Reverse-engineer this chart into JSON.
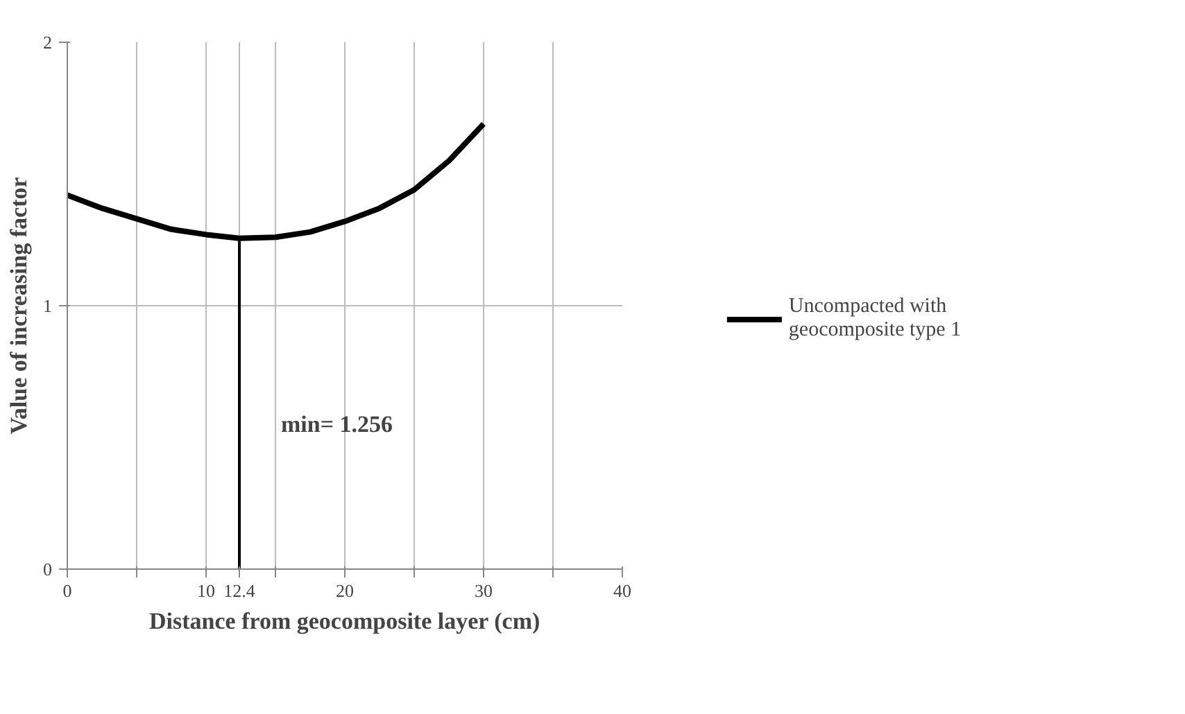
{
  "chart_data": {
    "type": "line",
    "xlabel": "Distance from geocomposite layer (cm)",
    "ylabel": "Value of increasing factor",
    "xlim": [
      0,
      40
    ],
    "ylim": [
      0,
      2
    ],
    "xticks": [
      0,
      {
        "value": 5,
        "label": null
      },
      10,
      {
        "value": 12.4,
        "label": "12.4"
      },
      {
        "value": 15,
        "label": null
      },
      20,
      {
        "value": 25,
        "label": null
      },
      30,
      {
        "value": 35,
        "label": null
      },
      40
    ],
    "yticks": [
      0,
      1,
      2
    ],
    "grid": true,
    "legend": "right",
    "marker": "none",
    "line_style": "solid",
    "series": [
      {
        "name": "Uncompacted with geocomposite type 1",
        "color": "#000000",
        "x": [
          0,
          2.5,
          5,
          7.5,
          10,
          12.4,
          15,
          17.5,
          20,
          22.5,
          25,
          27.5,
          30
        ],
        "values": [
          1.42,
          1.37,
          1.33,
          1.29,
          1.27,
          1.256,
          1.26,
          1.28,
          1.32,
          1.37,
          1.44,
          1.55,
          1.69
        ]
      },
      {
        "color": "#000000",
        "x": [
          12.4,
          12.4
        ],
        "values": [
          0,
          1.256
        ]
      }
    ],
    "annotations": [
      "min= 1.256"
    ]
  }
}
